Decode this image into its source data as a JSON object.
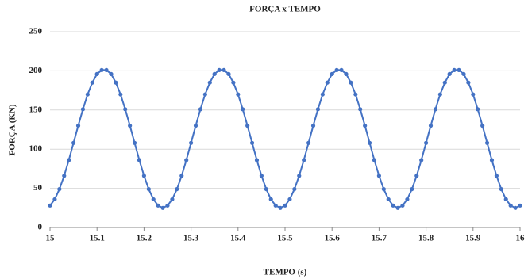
{
  "chart_data": {
    "type": "line",
    "title": "FORÇA x TEMPO",
    "x_label": "TEMPO (s)",
    "y_label": "FORÇA (KN)",
    "x": [
      15,
      15.01,
      15.02,
      15.03,
      15.04,
      15.05,
      15.06,
      15.07,
      15.08,
      15.09,
      15.1,
      15.11,
      15.12,
      15.13,
      15.14,
      15.15,
      15.16,
      15.17,
      15.18,
      15.19,
      15.2,
      15.21,
      15.22,
      15.23,
      15.24,
      15.25,
      15.26,
      15.27,
      15.28,
      15.29,
      15.3,
      15.31,
      15.32,
      15.33,
      15.34,
      15.35,
      15.36,
      15.37,
      15.38,
      15.39,
      15.4,
      15.41,
      15.42,
      15.43,
      15.44,
      15.45,
      15.46,
      15.47,
      15.48,
      15.49,
      15.5,
      15.51,
      15.52,
      15.53,
      15.54,
      15.55,
      15.56,
      15.57,
      15.58,
      15.59,
      15.6,
      15.61,
      15.62,
      15.63,
      15.64,
      15.65,
      15.66,
      15.67,
      15.68,
      15.69,
      15.7,
      15.71,
      15.72,
      15.73,
      15.74,
      15.75,
      15.76,
      15.77,
      15.78,
      15.79,
      15.8,
      15.81,
      15.82,
      15.83,
      15.84,
      15.85,
      15.86,
      15.87,
      15.88,
      15.89,
      15.9,
      15.91,
      15.92,
      15.93,
      15.94,
      15.95,
      15.96,
      15.97,
      15.98,
      15.99,
      16
    ],
    "series": [
      {
        "color": "#4472c4",
        "values": [
          28,
          36,
          49,
          66,
          86,
          108,
          130,
          151,
          170,
          185,
          196,
          201,
          201,
          196,
          185,
          170,
          151,
          130,
          108,
          86,
          66,
          49,
          36,
          28,
          25,
          28,
          36,
          49,
          66,
          86,
          108,
          130,
          151,
          170,
          185,
          196,
          201,
          201,
          196,
          185,
          170,
          151,
          130,
          108,
          86,
          66,
          49,
          36,
          28,
          25,
          28,
          36,
          49,
          66,
          86,
          108,
          130,
          151,
          170,
          185,
          196,
          201,
          201,
          196,
          185,
          170,
          151,
          130,
          108,
          86,
          66,
          49,
          36,
          28,
          25,
          28,
          36,
          49,
          66,
          86,
          108,
          130,
          151,
          170,
          185,
          196,
          201,
          201,
          196,
          185,
          170,
          151,
          130,
          108,
          86,
          66,
          49,
          36,
          28,
          25,
          28
        ]
      }
    ],
    "xlim": [
      15,
      16
    ],
    "xticks": [
      15,
      15.1,
      15.2,
      15.3,
      15.4,
      15.5,
      15.6,
      15.7,
      15.8,
      15.9,
      16
    ],
    "ylim": [
      0,
      250
    ],
    "yticks": [
      0,
      50,
      100,
      150,
      200,
      250
    ],
    "grid": true
  }
}
